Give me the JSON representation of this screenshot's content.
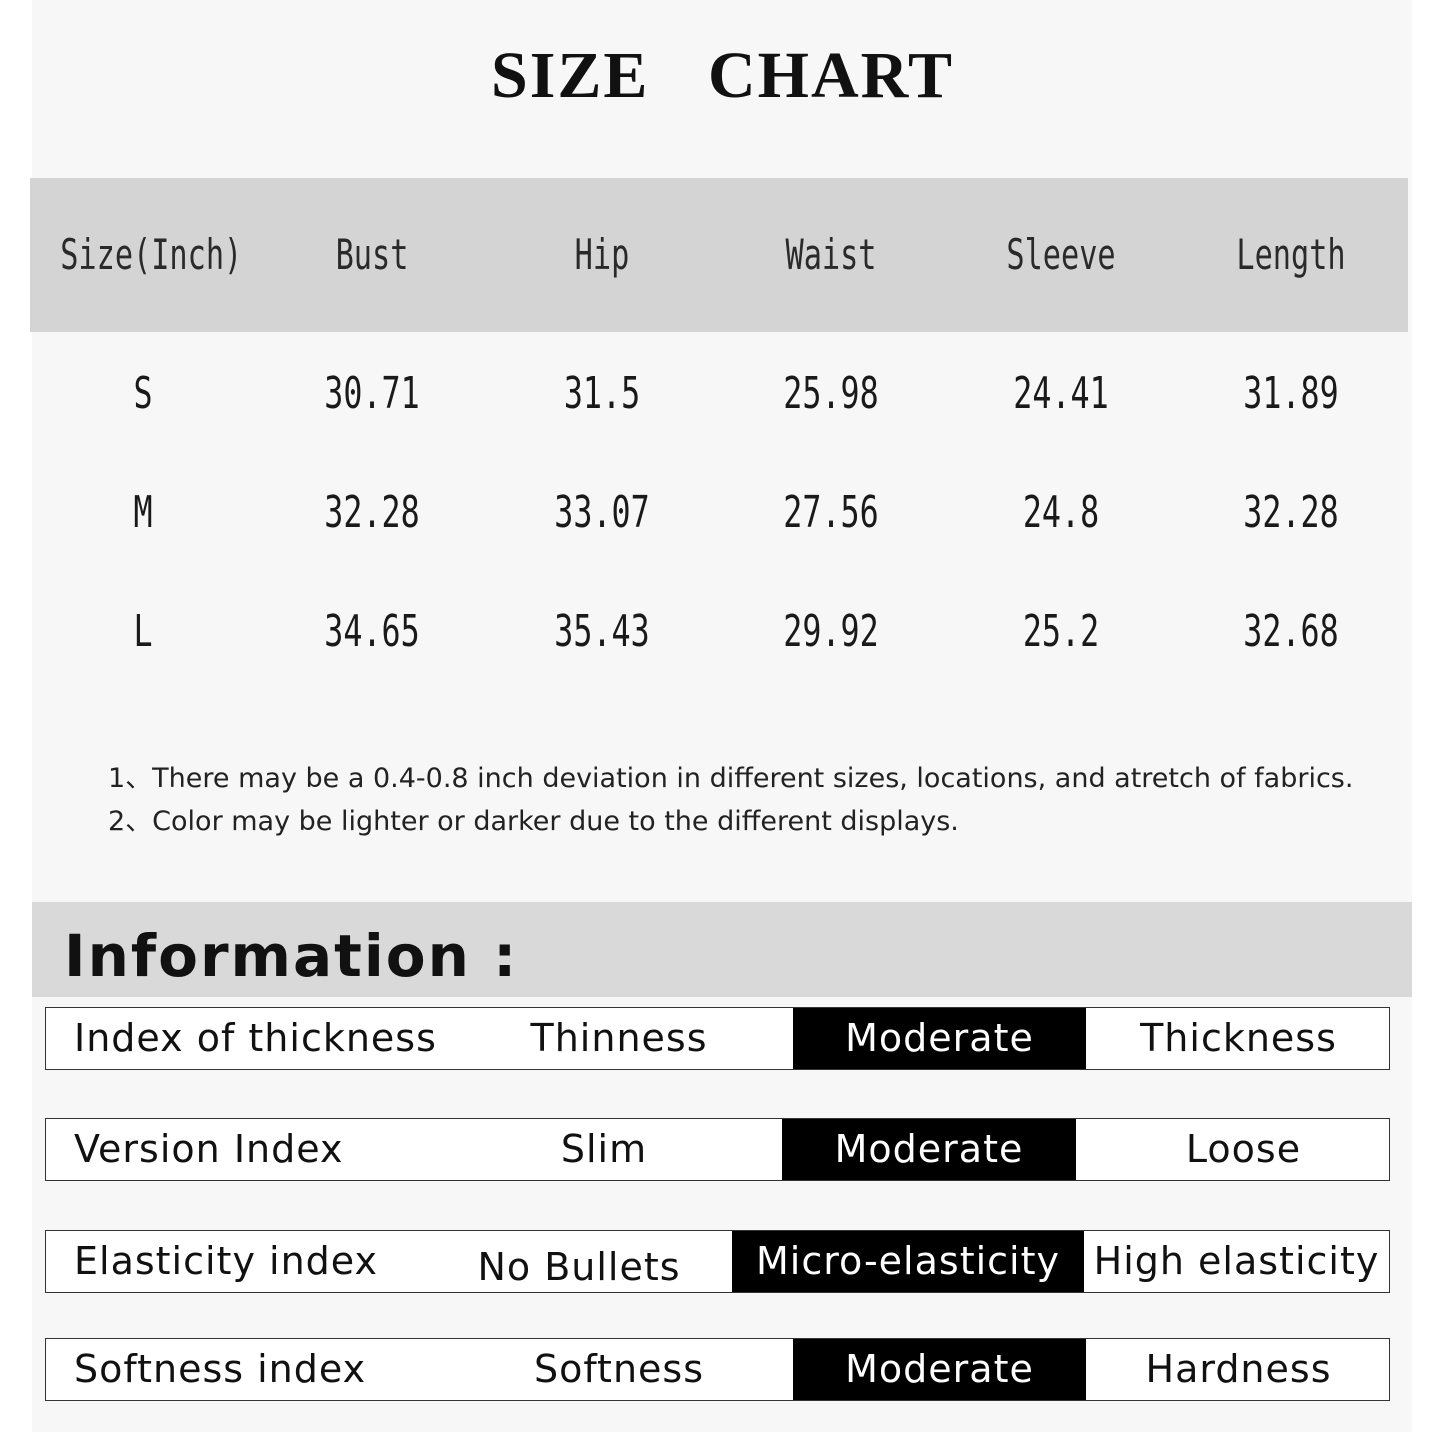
{
  "title": "SIZE CHART",
  "table": {
    "headers": [
      "Size(Inch)",
      "Bust",
      "Hip",
      "Waist",
      "Sleeve",
      "Length"
    ],
    "rows": [
      [
        "S",
        "30.71",
        "31.5",
        "25.98",
        "24.41",
        "31.89"
      ],
      [
        "M",
        "32.28",
        "33.07",
        "27.56",
        "24.8",
        "32.28"
      ],
      [
        "L",
        "34.65",
        "35.43",
        "29.92",
        "25.2",
        "32.68"
      ]
    ]
  },
  "notes": [
    "1、There may be a 0.4-0.8 inch deviation in different sizes, locations, and atretch of fabrics.",
    "2、Color may be lighter or darker due to the different displays."
  ],
  "information": {
    "title": "Information :",
    "rows": [
      {
        "label": "Index of thickness",
        "options": [
          "Thinness",
          "Moderate",
          "Thickness"
        ],
        "selected": "Moderate"
      },
      {
        "label": "Version Index",
        "options": [
          "Slim",
          "Moderate",
          "Loose"
        ],
        "selected": "Moderate"
      },
      {
        "label": "Elasticity index",
        "options": [
          "No Bullets",
          "Micro-elasticity",
          "High elasticity"
        ],
        "selected": "Micro-elasticity"
      },
      {
        "label": "Softness index",
        "options": [
          "Softness",
          "Moderate",
          "Hardness"
        ],
        "selected": "Moderate"
      }
    ]
  },
  "colors": {
    "highlight": "#000000",
    "header_bg": "#d4d4d4",
    "panel_bg": "#f7f7f7"
  }
}
